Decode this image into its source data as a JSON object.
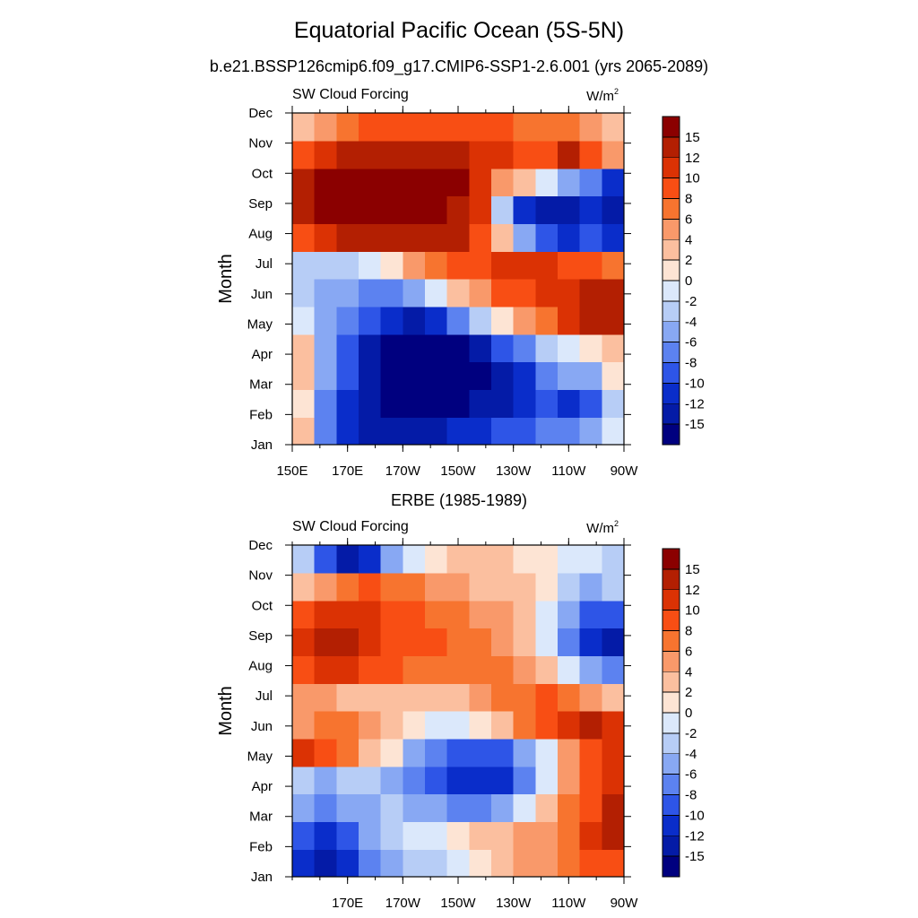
{
  "figure": {
    "title": "Equatorial Pacific Ocean (5S-5N)",
    "panel_top_title": "b.e21.BSSP126cmip6.f09_g17.CMIP6-SSP1-2.6.001 (yrs 2065-2089)",
    "panel_bottom_title": "ERBE (1985-1989)"
  },
  "chart_data": [
    {
      "type": "heatmap",
      "title": "SW Cloud Forcing",
      "units": "W/m",
      "units_sup": "2",
      "ylabel": "Month",
      "xlabel": "",
      "x_ticks": [
        "150E",
        "170E",
        "170W",
        "150W",
        "130W",
        "110W",
        "90W"
      ],
      "y_ticks": [
        "Jan",
        "Feb",
        "Mar",
        "Apr",
        "May",
        "Jun",
        "Jul",
        "Aug",
        "Sep",
        "Oct",
        "Nov",
        "Dec"
      ],
      "x_range": [
        "150E",
        "90W"
      ],
      "colorbar_labels": [
        "15",
        "12",
        "10",
        "8",
        "6",
        "4",
        "2",
        "0",
        "-2",
        "-4",
        "-6",
        "-8",
        "-10",
        "-12",
        "-15"
      ],
      "colorbar_colors": [
        "#8b0000",
        "#b31f02",
        "#db3204",
        "#f84e14",
        "#f7742f",
        "#f9996a",
        "#fbbf9f",
        "#fde4d4",
        "#dbe8fb",
        "#b7cdf6",
        "#88a8f3",
        "#5c82f0",
        "#2e55e7",
        "#0a2dca",
        "#041ba7",
        "#00007f"
      ],
      "grid_values": [
        [
          3,
          -8,
          -12,
          -13,
          -13,
          -13,
          -13,
          -12,
          -11,
          -10,
          -9,
          -8,
          -7,
          -5,
          -2
        ],
        [
          1,
          -7,
          -11,
          -14,
          -16,
          -16,
          -16,
          -16,
          -15,
          -13,
          -11,
          -10,
          -12,
          -9,
          -3
        ],
        [
          2,
          -6,
          -10,
          -15,
          -17,
          -17,
          -17,
          -17,
          -16,
          -14,
          -11,
          -8,
          -6,
          -5,
          0
        ],
        [
          3,
          -5,
          -9,
          -13,
          -16,
          -17,
          -17,
          -16,
          -14,
          -10,
          -7,
          -4,
          -2,
          0,
          2
        ],
        [
          -2,
          -6,
          -8,
          -10,
          -12,
          -13,
          -11,
          -7,
          -3,
          1,
          4,
          7,
          10,
          12,
          13
        ],
        [
          -4,
          -5,
          -6,
          -7,
          -7,
          -5,
          -2,
          2,
          5,
          8,
          9,
          10,
          11,
          12,
          12
        ],
        [
          -3,
          -3,
          -3,
          -2,
          1,
          4,
          6,
          8,
          9,
          10,
          10,
          11,
          9,
          8,
          7
        ],
        [
          8,
          10,
          12,
          13,
          14,
          14,
          14,
          12,
          9,
          2,
          -6,
          -10,
          -11,
          -10,
          -12
        ],
        [
          12,
          15,
          17,
          17,
          17,
          17,
          17,
          14,
          10,
          -4,
          -12,
          -15,
          -13,
          -12,
          -14
        ],
        [
          13,
          16,
          17,
          17,
          17,
          17,
          17,
          15,
          10,
          5,
          2,
          -2,
          -5,
          -8,
          -11
        ],
        [
          8,
          11,
          13,
          14,
          14,
          14,
          13,
          12,
          11,
          10,
          9,
          9,
          12,
          8,
          4
        ],
        [
          3,
          5,
          7,
          8,
          8,
          8,
          8,
          8,
          8,
          8,
          7,
          6,
          6,
          5,
          3
        ]
      ]
    },
    {
      "type": "heatmap",
      "title": "SW Cloud Forcing",
      "units": "W/m",
      "units_sup": "2",
      "ylabel": "Month",
      "xlabel": "",
      "x_ticks": [
        "170E",
        "170W",
        "150W",
        "130W",
        "110W",
        "90W"
      ],
      "y_ticks": [
        "Jan",
        "Feb",
        "Mar",
        "Apr",
        "May",
        "Jun",
        "Jul",
        "Aug",
        "Sep",
        "Oct",
        "Nov",
        "Dec"
      ],
      "x_range": [
        "150E",
        "90W"
      ],
      "colorbar_labels": [
        "15",
        "12",
        "10",
        "8",
        "6",
        "4",
        "2",
        "0",
        "-2",
        "-4",
        "-6",
        "-8",
        "-10",
        "-12",
        "-15"
      ],
      "colorbar_colors": [
        "#8b0000",
        "#b31f02",
        "#db3204",
        "#f84e14",
        "#f7742f",
        "#f9996a",
        "#fbbf9f",
        "#fde4d4",
        "#dbe8fb",
        "#b7cdf6",
        "#88a8f3",
        "#5c82f0",
        "#2e55e7",
        "#0a2dca",
        "#041ba7",
        "#00007f"
      ],
      "grid_values": [
        [
          -12,
          -13,
          -11,
          -8,
          -6,
          -4,
          -3,
          -1,
          1,
          3,
          4,
          5,
          6,
          8,
          9
        ],
        [
          -10,
          -11,
          -9,
          -6,
          -4,
          -2,
          -1,
          0,
          2,
          3,
          4,
          5,
          7,
          10,
          12
        ],
        [
          -6,
          -7,
          -6,
          -5,
          -4,
          -5,
          -6,
          -7,
          -7,
          -5,
          -2,
          2,
          6,
          9,
          13
        ],
        [
          -4,
          -5,
          -4,
          -4,
          -6,
          -8,
          -10,
          -11,
          -12,
          -11,
          -7,
          -2,
          4,
          8,
          10
        ],
        [
          11,
          9,
          6,
          3,
          0,
          -5,
          -8,
          -10,
          -10,
          -9,
          -6,
          -1,
          5,
          9,
          11
        ],
        [
          4,
          6,
          6,
          4,
          2,
          0,
          -2,
          -2,
          0,
          3,
          6,
          9,
          11,
          12,
          11
        ],
        [
          5,
          4,
          3,
          3,
          3,
          3,
          2,
          3,
          5,
          6,
          7,
          8,
          6,
          4,
          3
        ],
        [
          9,
          11,
          10,
          9,
          8,
          7,
          7,
          7,
          6,
          6,
          4,
          2,
          -2,
          -6,
          -8
        ],
        [
          10,
          13,
          12,
          11,
          9,
          8,
          8,
          7,
          6,
          5,
          3,
          -1,
          -8,
          -12,
          -14
        ],
        [
          8,
          10,
          11,
          10,
          9,
          8,
          7,
          6,
          5,
          4,
          2,
          -1,
          -6,
          -9,
          -10
        ],
        [
          3,
          5,
          7,
          8,
          7,
          6,
          5,
          4,
          3,
          3,
          2,
          0,
          -3,
          -5,
          -4
        ],
        [
          -4,
          -10,
          -13,
          -12,
          -6,
          -2,
          0,
          2,
          3,
          2,
          1,
          0,
          -1,
          -2,
          -3
        ]
      ]
    }
  ]
}
